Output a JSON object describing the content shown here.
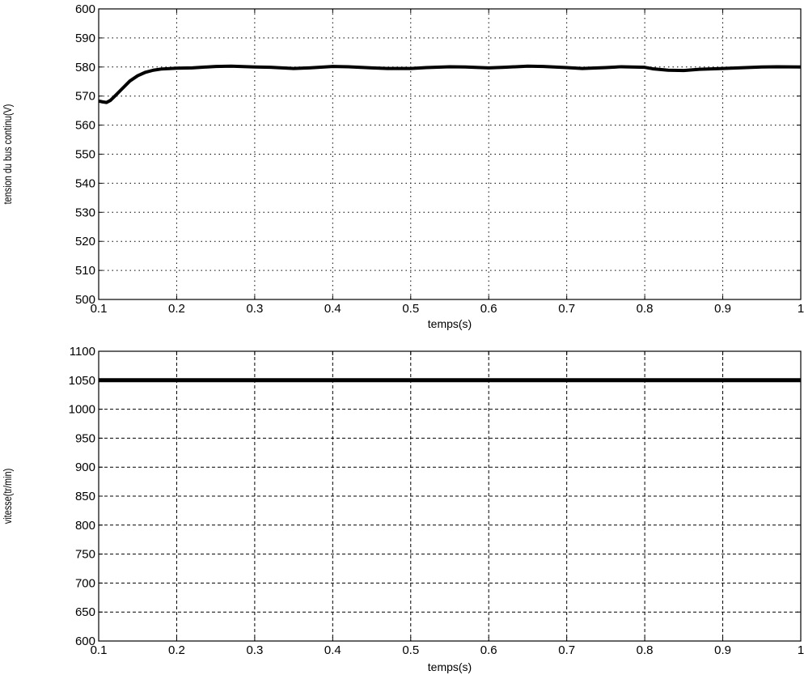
{
  "chart_data": [
    {
      "type": "line",
      "xlabel": "temps(s)",
      "ylabel": "tension du bus continu(V)",
      "xlim": [
        0.1,
        1
      ],
      "ylim": [
        500,
        600
      ],
      "xticks": [
        "0.1",
        "0.2",
        "0.3",
        "0.4",
        "0.5",
        "0.6",
        "0.7",
        "0.8",
        "0.9",
        "1"
      ],
      "yticks": [
        "500",
        "510",
        "520",
        "530",
        "540",
        "550",
        "560",
        "570",
        "580",
        "590",
        "600"
      ],
      "grid": "dotted",
      "series": [
        {
          "x": [
            0.1,
            0.105,
            0.11,
            0.115,
            0.12,
            0.13,
            0.14,
            0.15,
            0.16,
            0.17,
            0.18,
            0.2,
            0.22,
            0.25,
            0.27,
            0.3,
            0.32,
            0.35,
            0.37,
            0.4,
            0.42,
            0.45,
            0.47,
            0.5,
            0.52,
            0.55,
            0.57,
            0.6,
            0.62,
            0.65,
            0.67,
            0.7,
            0.72,
            0.75,
            0.77,
            0.8,
            0.81,
            0.83,
            0.85,
            0.87,
            0.9,
            0.92,
            0.95,
            0.97,
            1.0
          ],
          "y": [
            568.3,
            568.0,
            567.8,
            568.5,
            569.8,
            572.5,
            575.2,
            577.0,
            578.2,
            578.9,
            579.3,
            579.6,
            579.7,
            580.2,
            580.3,
            580.0,
            579.9,
            579.5,
            579.7,
            580.2,
            580.1,
            579.7,
            579.5,
            579.5,
            579.8,
            580.1,
            580.0,
            579.7,
            579.9,
            580.3,
            580.2,
            579.8,
            579.5,
            579.8,
            580.1,
            579.9,
            579.4,
            578.9,
            578.8,
            579.2,
            579.5,
            579.7,
            580.0,
            580.1,
            580.0
          ]
        }
      ]
    },
    {
      "type": "line",
      "xlabel": "temps(s)",
      "ylabel": "vitesse(tr/min)",
      "xlim": [
        0.1,
        1
      ],
      "ylim": [
        600,
        1100
      ],
      "xticks": [
        "0.1",
        "0.2",
        "0.3",
        "0.4",
        "0.5",
        "0.6",
        "0.7",
        "0.8",
        "0.9",
        "1"
      ],
      "yticks": [
        "600",
        "650",
        "700",
        "750",
        "800",
        "850",
        "900",
        "950",
        "1000",
        "1050",
        "1100"
      ],
      "grid": "dashed",
      "series": [
        {
          "x": [
            0.1,
            1.0
          ],
          "y": [
            1050,
            1050
          ]
        }
      ]
    }
  ]
}
